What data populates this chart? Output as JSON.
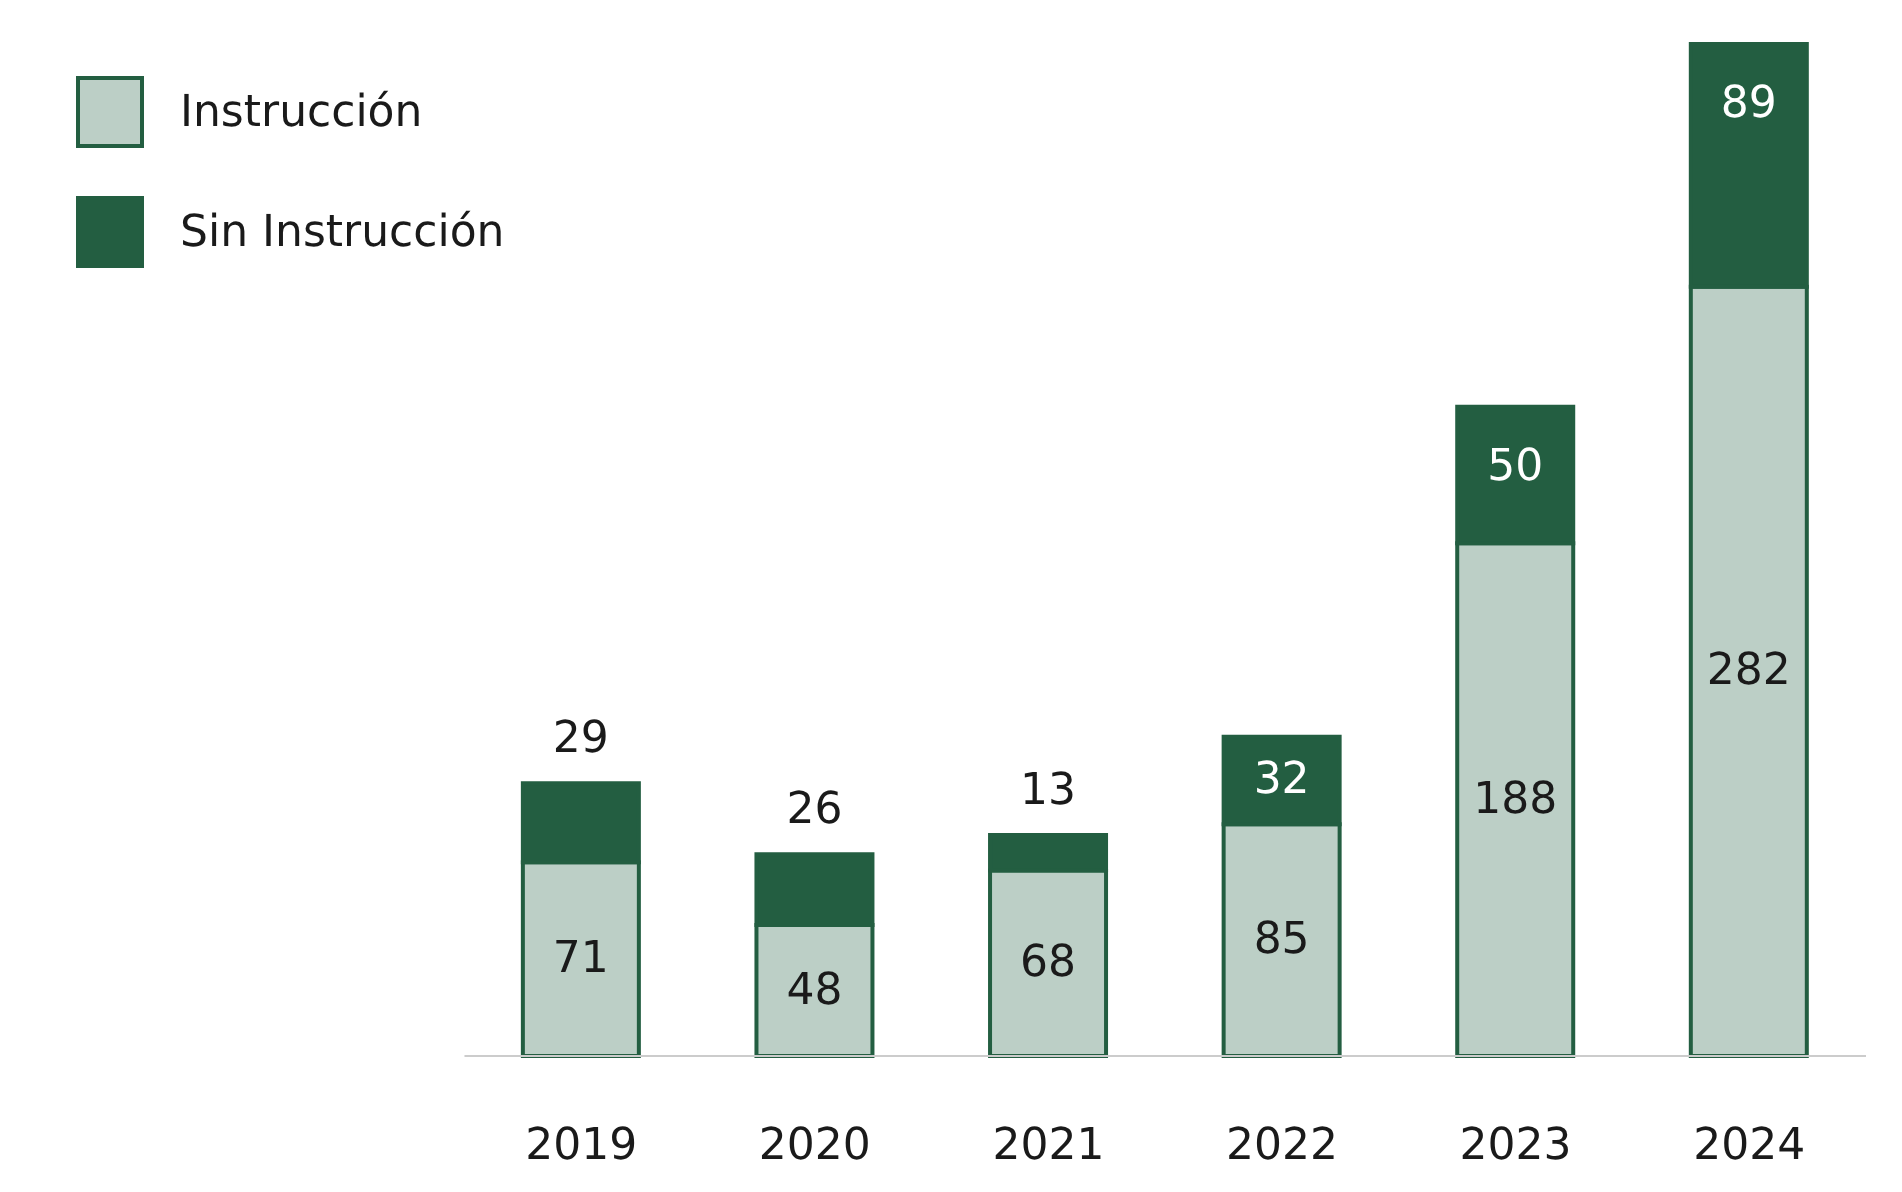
{
  "chart_data": {
    "type": "bar",
    "stacked": true,
    "categories": [
      "2019",
      "2020",
      "2021",
      "2022",
      "2023",
      "2024"
    ],
    "series": [
      {
        "name": "Instrucción",
        "color": "#bccfc6",
        "values": [
          71,
          48,
          68,
          85,
          188,
          282
        ]
      },
      {
        "name": "Sin Instrucción",
        "color": "#235e41",
        "values": [
          29,
          26,
          13,
          32,
          50,
          89
        ]
      }
    ],
    "data_labels": true,
    "legend": "top left",
    "grid": false
  }
}
